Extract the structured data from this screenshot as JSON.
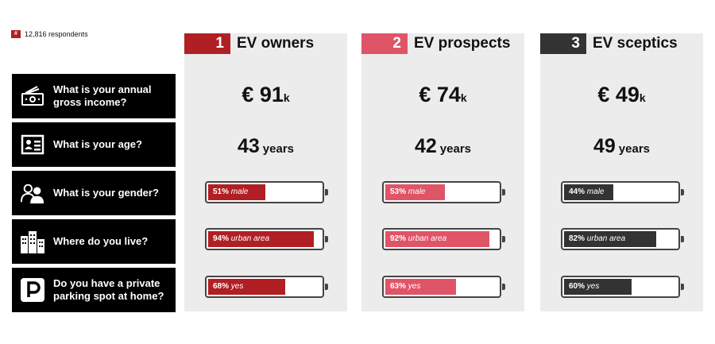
{
  "respondents": {
    "icon": "#",
    "text": "12,816 respondents"
  },
  "questions": [
    {
      "icon": "money-icon",
      "text": "What is your annual\ngross income?"
    },
    {
      "icon": "id-card-icon",
      "text": "What is your age?"
    },
    {
      "icon": "people-icon",
      "text": "What is your gender?"
    },
    {
      "icon": "buildings-icon",
      "text": "Where do you live?"
    },
    {
      "icon": "parking-icon",
      "text": "Do you have a private\nparking spot at home?"
    }
  ],
  "colors": {
    "owners": "#b01f24",
    "prospects": "#e05468",
    "sceptics": "#333333"
  },
  "chart_data": {
    "type": "table",
    "groups": [
      {
        "num": "1",
        "name": "EV owners",
        "income": "€ 91",
        "income_unit": "k",
        "age": "43",
        "age_unit": "years",
        "gender_pct": 51,
        "gender_label": "51%",
        "gender_text": "male",
        "urban_pct": 94,
        "urban_label": "94%",
        "urban_text": "urban area",
        "parking_pct": 68,
        "parking_label": "68%",
        "parking_text": "yes"
      },
      {
        "num": "2",
        "name": "EV prospects",
        "income": "€ 74",
        "income_unit": "k",
        "age": "42",
        "age_unit": "years",
        "gender_pct": 53,
        "gender_label": "53%",
        "gender_text": "male",
        "urban_pct": 92,
        "urban_label": "92%",
        "urban_text": "urban area",
        "parking_pct": 63,
        "parking_label": "63%",
        "parking_text": "yes"
      },
      {
        "num": "3",
        "name": "EV sceptics",
        "income": "€ 49",
        "income_unit": "k",
        "age": "49",
        "age_unit": "years",
        "gender_pct": 44,
        "gender_label": "44%",
        "gender_text": "male",
        "urban_pct": 82,
        "urban_label": "82%",
        "urban_text": "urban area",
        "parking_pct": 60,
        "parking_label": "60%",
        "parking_text": "yes"
      }
    ]
  }
}
